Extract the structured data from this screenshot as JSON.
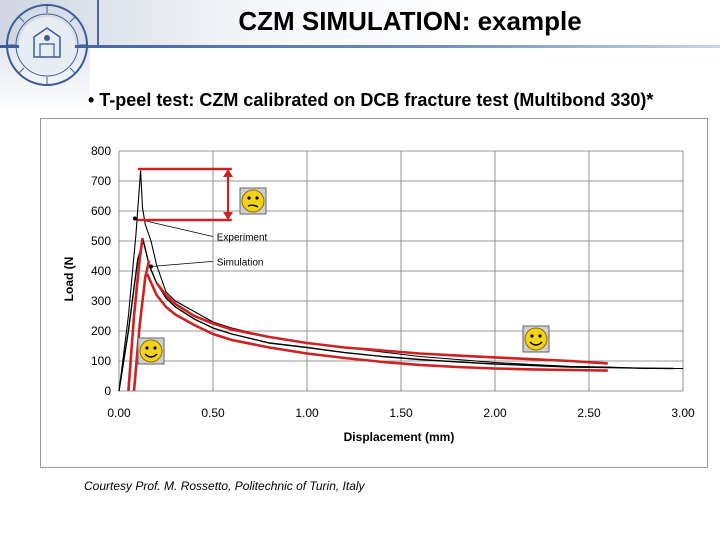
{
  "slide": {
    "title": "CZM SIMULATION: example",
    "bullet": "• T-peel test: CZM calibrated on DCB fracture test (Multibond 330)*",
    "courtesy": "Courtesy Prof. M. Rossetto, Politechnic of Turin, Italy"
  },
  "colors": {
    "band": "#3a5d97",
    "highlight_red": "#cc2222",
    "curve": "#000000",
    "smiley": "#f2d21b"
  },
  "icons": [
    "university-seal-icon",
    "neutral-smiley-icon",
    "happy-smiley-icon",
    "double-arrow-icon"
  ],
  "chart_data": {
    "type": "line",
    "title": "",
    "xlabel": "Displacement (mm)",
    "ylabel": "Load (N",
    "xlim": [
      0,
      3
    ],
    "ylim": [
      0,
      800
    ],
    "x_ticks": [
      "0.00",
      "0.50",
      "1.00",
      "1.50",
      "2.00",
      "2.50",
      "3.00"
    ],
    "y_ticks": [
      "0",
      "100",
      "200",
      "300",
      "400",
      "500",
      "600",
      "700",
      "800"
    ],
    "grid": "vertical and horizontal gridlines",
    "annotations": [
      {
        "text": "Experiment",
        "x": 0.52,
        "y": 515
      },
      {
        "text": "Simulation",
        "x": 0.52,
        "y": 432
      }
    ],
    "series": [
      {
        "name": "Experiment",
        "points": [
          [
            0.0,
            0
          ],
          [
            0.05,
            250
          ],
          [
            0.09,
            520
          ],
          [
            0.115,
            735
          ],
          [
            0.125,
            610
          ],
          [
            0.14,
            555
          ],
          [
            0.17,
            500
          ],
          [
            0.2,
            420
          ],
          [
            0.25,
            330
          ],
          [
            0.3,
            300
          ],
          [
            0.4,
            265
          ],
          [
            0.5,
            230
          ],
          [
            0.6,
            210
          ],
          [
            0.8,
            180
          ],
          [
            1.0,
            160
          ],
          [
            1.2,
            145
          ],
          [
            1.4,
            130
          ],
          [
            1.6,
            115
          ],
          [
            1.8,
            105
          ],
          [
            2.0,
            95
          ],
          [
            2.2,
            88
          ],
          [
            2.4,
            82
          ],
          [
            2.6,
            80
          ],
          [
            2.8,
            75
          ],
          [
            3.0,
            75
          ]
        ]
      },
      {
        "name": "Simulation",
        "points": [
          [
            0.0,
            0
          ],
          [
            0.05,
            200
          ],
          [
            0.1,
            440
          ],
          [
            0.13,
            500
          ],
          [
            0.16,
            420
          ],
          [
            0.2,
            360
          ],
          [
            0.25,
            310
          ],
          [
            0.3,
            280
          ],
          [
            0.4,
            240
          ],
          [
            0.5,
            210
          ],
          [
            0.6,
            190
          ],
          [
            0.8,
            160
          ],
          [
            1.0,
            145
          ],
          [
            1.2,
            128
          ],
          [
            1.4,
            115
          ],
          [
            1.6,
            105
          ],
          [
            1.8,
            97
          ],
          [
            2.0,
            90
          ],
          [
            2.2,
            85
          ],
          [
            2.4,
            80
          ],
          [
            2.6,
            78
          ],
          [
            2.8,
            76
          ],
          [
            2.95,
            75
          ]
        ]
      },
      {
        "name": "",
        "color": "#cc2222",
        "points": [
          [
            0.2,
            360
          ],
          [
            0.25,
            320
          ],
          [
            0.3,
            290
          ],
          [
            0.4,
            250
          ],
          [
            0.5,
            225
          ],
          [
            0.6,
            205
          ],
          [
            0.8,
            180
          ],
          [
            1.0,
            160
          ],
          [
            1.2,
            145
          ],
          [
            1.4,
            135
          ],
          [
            1.6,
            125
          ],
          [
            1.8,
            118
          ],
          [
            2.0,
            112
          ],
          [
            2.2,
            106
          ],
          [
            2.4,
            100
          ],
          [
            2.6,
            92
          ]
        ]
      },
      {
        "name": "",
        "color": "#cc2222",
        "points": [
          [
            0.15,
            390
          ],
          [
            0.2,
            320
          ],
          [
            0.25,
            280
          ],
          [
            0.3,
            255
          ],
          [
            0.4,
            220
          ],
          [
            0.5,
            190
          ],
          [
            0.6,
            170
          ],
          [
            0.8,
            145
          ],
          [
            1.0,
            125
          ],
          [
            1.2,
            110
          ],
          [
            1.4,
            97
          ],
          [
            1.6,
            87
          ],
          [
            1.8,
            80
          ],
          [
            2.0,
            75
          ],
          [
            2.2,
            72
          ],
          [
            2.4,
            70
          ],
          [
            2.6,
            68
          ]
        ]
      },
      {
        "name": "",
        "color": "#cc2222",
        "points": [
          [
            0.05,
            0
          ],
          [
            0.08,
            250
          ],
          [
            0.11,
            440
          ],
          [
            0.125,
            510
          ]
        ]
      },
      {
        "name": "",
        "color": "#cc2222",
        "points": [
          [
            0.08,
            0
          ],
          [
            0.11,
            220
          ],
          [
            0.14,
            380
          ],
          [
            0.16,
            435
          ]
        ]
      }
    ],
    "highlight": {
      "upper_bar": {
        "x": [
          0.1,
          0.6
        ],
        "y": 740
      },
      "lower_bar": {
        "x": [
          0.1,
          0.6
        ],
        "y": 570
      },
      "double_arrow_x": 0.58
    }
  }
}
